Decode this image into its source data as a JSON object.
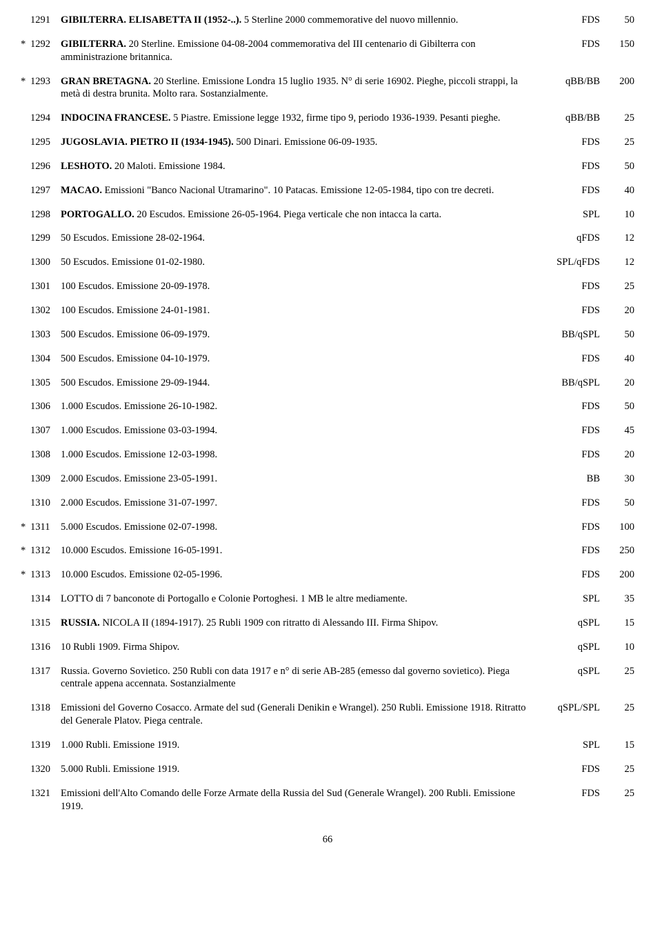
{
  "page_number": "66",
  "lots": [
    {
      "star": "",
      "num": "1291",
      "desc": "<span class='b'>GIBILTERRA. ELISABETTA II (1952-..).</span> 5 Sterline 2000 commemorative del nuovo millennio.",
      "grade": "FDS",
      "price": "50"
    },
    {
      "star": "*",
      "num": "1292",
      "desc": "<span class='b'>GIBILTERRA.</span> 20 Sterline. Emissione 04-08-2004 commemorativa del III centenario di Gibilterra con amministrazione britannica.",
      "grade": "FDS",
      "price": "150"
    },
    {
      "star": "*",
      "num": "1293",
      "desc": "<span class='b'>GRAN BRETAGNA.</span> 20 Sterline. Emissione Londra 15 luglio 1935. N° di serie 16902. Pieghe, piccoli strappi, la metà di destra brunita. Molto rara. Sostanzialmente.",
      "grade": "qBB/BB",
      "price": "200"
    },
    {
      "star": "",
      "num": "1294",
      "desc": "<span class='b'>INDOCINA FRANCESE.</span> 5 Piastre. Emissione legge 1932, firme tipo 9, periodo 1936-1939. Pesanti pieghe.",
      "grade": "qBB/BB",
      "price": "25"
    },
    {
      "star": "",
      "num": "1295",
      "desc": "<span class='b'>JUGOSLAVIA. PIETRO II (1934-1945).</span> 500 Dinari. Emissione 06-09-1935.",
      "grade": "FDS",
      "price": "25"
    },
    {
      "star": "",
      "num": "1296",
      "desc": "<span class='b'>LESHOTO.</span> 20 Maloti. Emissione 1984.",
      "grade": "FDS",
      "price": "50"
    },
    {
      "star": "",
      "num": "1297",
      "desc": "<span class='b'>MACAO.</span> Emissioni \"Banco Nacional Utramarino\". 10 Patacas. Emissione 12-05-1984, tipo con tre decreti.",
      "grade": "FDS",
      "price": "40"
    },
    {
      "star": "",
      "num": "1298",
      "desc": "<span class='b'>PORTOGALLO.</span> 20 Escudos. Emissione 26-05-1964. Piega verticale che non intacca la carta.",
      "grade": "SPL",
      "price": "10"
    },
    {
      "star": "",
      "num": "1299",
      "desc": "50 Escudos. Emissione 28-02-1964.",
      "grade": "qFDS",
      "price": "12"
    },
    {
      "star": "",
      "num": "1300",
      "desc": "50 Escudos. Emissione 01-02-1980.",
      "grade": "SPL/qFDS",
      "price": "12"
    },
    {
      "star": "",
      "num": "1301",
      "desc": "100 Escudos. Emissione 20-09-1978.",
      "grade": "FDS",
      "price": "25"
    },
    {
      "star": "",
      "num": "1302",
      "desc": "100 Escudos. Emissione 24-01-1981.",
      "grade": "FDS",
      "price": "20"
    },
    {
      "star": "",
      "num": "1303",
      "desc": "500 Escudos. Emissione 06-09-1979.",
      "grade": "BB/qSPL",
      "price": "50"
    },
    {
      "star": "",
      "num": "1304",
      "desc": "500 Escudos. Emissione 04-10-1979.",
      "grade": "FDS",
      "price": "40"
    },
    {
      "star": "",
      "num": "1305",
      "desc": "500 Escudos. Emissione 29-09-1944.",
      "grade": "BB/qSPL",
      "price": "20"
    },
    {
      "star": "",
      "num": "1306",
      "desc": "1.000 Escudos. Emissione 26-10-1982.",
      "grade": "FDS",
      "price": "50"
    },
    {
      "star": "",
      "num": "1307",
      "desc": "1.000 Escudos. Emissione 03-03-1994.",
      "grade": "FDS",
      "price": "45"
    },
    {
      "star": "",
      "num": "1308",
      "desc": "1.000 Escudos. Emissione 12-03-1998.",
      "grade": "FDS",
      "price": "20"
    },
    {
      "star": "",
      "num": "1309",
      "desc": "2.000 Escudos. Emissione 23-05-1991.",
      "grade": "BB",
      "price": "30"
    },
    {
      "star": "",
      "num": "1310",
      "desc": "2.000 Escudos. Emissione 31-07-1997.",
      "grade": "FDS",
      "price": "50"
    },
    {
      "star": "*",
      "num": "1311",
      "desc": "5.000 Escudos. Emissione 02-07-1998.",
      "grade": "FDS",
      "price": "100"
    },
    {
      "star": "*",
      "num": "1312",
      "desc": "10.000 Escudos. Emissione 16-05-1991.",
      "grade": "FDS",
      "price": "250"
    },
    {
      "star": "*",
      "num": "1313",
      "desc": "10.000 Escudos. Emissione 02-05-1996.",
      "grade": "FDS",
      "price": "200"
    },
    {
      "star": "",
      "num": "1314",
      "desc": "LOTTO di 7 banconote di Portogallo e Colonie Portoghesi. 1 MB le altre mediamente.",
      "grade": "SPL",
      "price": "35"
    },
    {
      "star": "",
      "num": "1315",
      "desc": "<span class='b'>RUSSIA.</span> NICOLA II (1894-1917). 25 Rubli 1909 con ritratto di Alessando III. Firma Shipov.",
      "grade": "qSPL",
      "price": "15"
    },
    {
      "star": "",
      "num": "1316",
      "desc": "10 Rubli 1909. Firma Shipov.",
      "grade": "qSPL",
      "price": "10"
    },
    {
      "star": "",
      "num": "1317",
      "desc": "Russia. Governo Sovietico. 250 Rubli con data 1917 e n° di serie AB-285 (emesso dal governo sovietico). Piega centrale appena accennata. Sostanzialmente",
      "grade": "qSPL",
      "price": "25"
    },
    {
      "star": "",
      "num": "1318",
      "desc": "Emissioni del Governo Cosacco. Armate del sud (Generali Denikin e Wrangel). 250 Rubli. Emissione 1918. Ritratto del Generale Platov. Piega centrale.",
      "grade": "qSPL/SPL",
      "price": "25"
    },
    {
      "star": "",
      "num": "1319",
      "desc": "1.000 Rubli. Emissione 1919.",
      "grade": "SPL",
      "price": "15"
    },
    {
      "star": "",
      "num": "1320",
      "desc": "5.000 Rubli. Emissione 1919.",
      "grade": "FDS",
      "price": "25"
    },
    {
      "star": "",
      "num": "1321",
      "desc": "Emissioni dell'Alto Comando delle Forze Armate della Russia del Sud (Generale Wrangel). 200 Rubli. Emissione 1919.",
      "grade": "FDS",
      "price": "25"
    }
  ]
}
